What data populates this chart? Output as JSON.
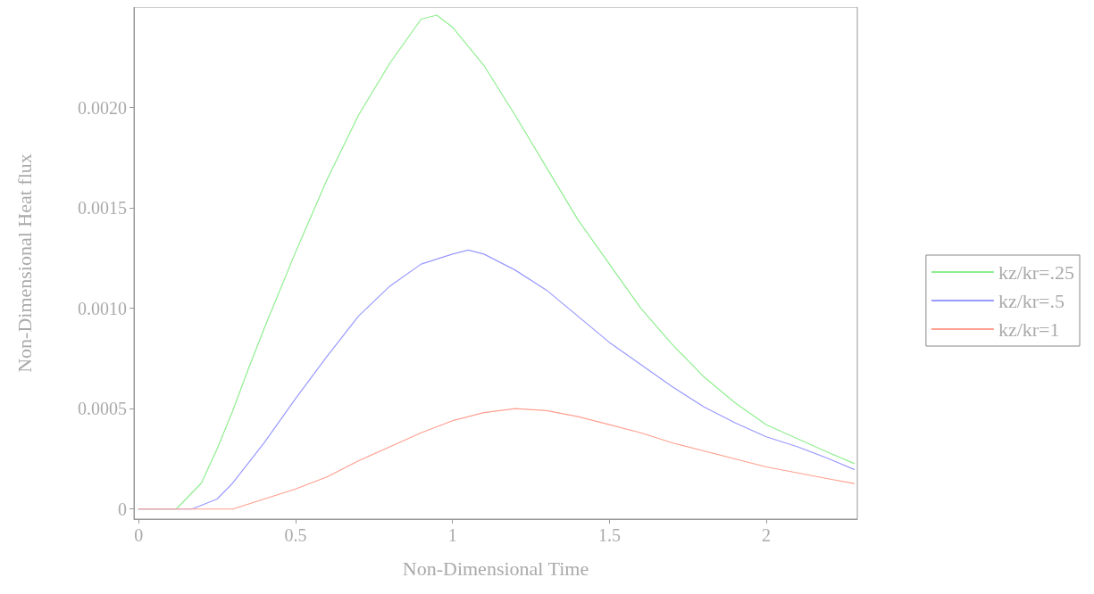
{
  "chart_data": {
    "type": "line",
    "xlabel": "Non-Dimensional Time",
    "ylabel": "Non-Dimensional Heat flux",
    "xlim": [
      -0.015,
      2.29
    ],
    "ylim": [
      -5e-05,
      0.0025
    ],
    "xticks": [
      0,
      0.5,
      1,
      1.5,
      2
    ],
    "yticks": [
      0,
      {
        "value": 0.0005,
        "label": "0.0005"
      },
      {
        "value": 0.001,
        "label": "0.0010"
      },
      {
        "value": 0.0015,
        "label": "0.0015"
      },
      {
        "value": 0.002,
        "label": "0.0020"
      }
    ],
    "grid": false,
    "legend": "right",
    "marker": "none",
    "line_style": "solid",
    "series": [
      {
        "name": "kz/kr=.25",
        "color": "#90ee90",
        "x": [
          0,
          0.12,
          0.2,
          0.25,
          0.3,
          0.35,
          0.4,
          0.5,
          0.6,
          0.7,
          0.8,
          0.9,
          0.95,
          1.0,
          1.1,
          1.2,
          1.3,
          1.4,
          1.5,
          1.6,
          1.7,
          1.8,
          1.9,
          2.0,
          2.1,
          2.2,
          2.28
        ],
        "values": [
          0,
          0,
          0.00013,
          0.0003,
          0.00049,
          0.0007,
          0.0009,
          0.00128,
          0.00164,
          0.00196,
          0.00222,
          0.00244,
          0.00246,
          0.0024,
          0.00221,
          0.00196,
          0.0017,
          0.00144,
          0.00122,
          0.001,
          0.00082,
          0.00066,
          0.00053,
          0.00042,
          0.00035,
          0.00028,
          0.000227
        ]
      },
      {
        "name": "kz/kr=.5",
        "color": "#9999ff",
        "x": [
          0,
          0.17,
          0.25,
          0.3,
          0.4,
          0.5,
          0.6,
          0.7,
          0.8,
          0.9,
          1.0,
          1.05,
          1.1,
          1.2,
          1.3,
          1.4,
          1.5,
          1.6,
          1.7,
          1.8,
          1.9,
          2.0,
          2.1,
          2.2,
          2.28
        ],
        "values": [
          0,
          0,
          5e-05,
          0.00013,
          0.00033,
          0.00055,
          0.00076,
          0.00096,
          0.00111,
          0.00122,
          0.00127,
          0.00129,
          0.00127,
          0.00119,
          0.00109,
          0.00096,
          0.00083,
          0.00072,
          0.00061,
          0.00051,
          0.00043,
          0.00036,
          0.00031,
          0.00025,
          0.000197
        ]
      },
      {
        "name": "kz/kr=1",
        "color": "#ffa090",
        "x": [
          0,
          0.3,
          0.4,
          0.5,
          0.6,
          0.7,
          0.8,
          0.9,
          1.0,
          1.1,
          1.2,
          1.3,
          1.4,
          1.5,
          1.6,
          1.7,
          1.8,
          1.9,
          2.0,
          2.1,
          2.2,
          2.28
        ],
        "values": [
          0,
          0,
          5e-05,
          0.0001,
          0.00016,
          0.00024,
          0.00031,
          0.00038,
          0.00044,
          0.00048,
          0.0005,
          0.00049,
          0.00046,
          0.00042,
          0.00038,
          0.00033,
          0.00029,
          0.00025,
          0.00021,
          0.00018,
          0.00015,
          0.000127
        ]
      }
    ]
  }
}
